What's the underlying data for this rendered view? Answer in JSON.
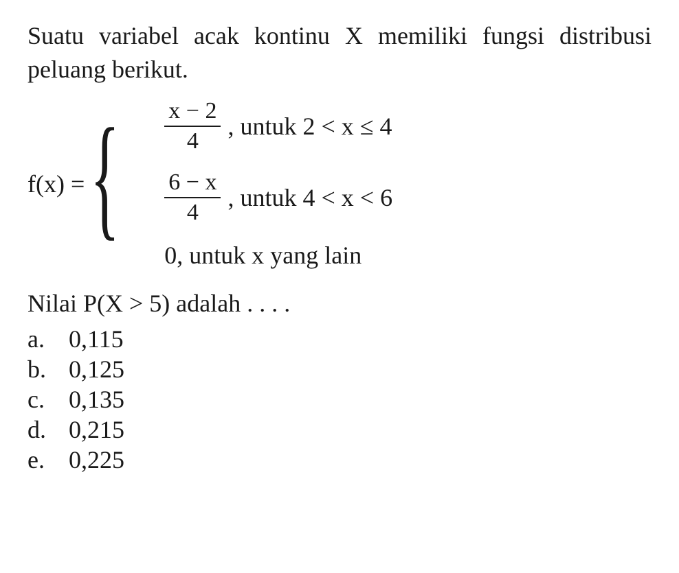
{
  "font_family": "Times New Roman",
  "text_color": "#1a1a1a",
  "background_color": "#ffffff",
  "question": {
    "intro": "Suatu variabel acak kontinu X memiliki fungsi distribusi peluang berikut."
  },
  "formula": {
    "lhs": "f(x) = ",
    "cases": [
      {
        "numerator": "x − 2",
        "denominator": "4",
        "separator": ", ",
        "condition": "untuk 2 < x ≤ 4"
      },
      {
        "numerator": "6 − x",
        "denominator": "4",
        "separator": ", ",
        "condition": "untuk 4 < x < 6"
      },
      {
        "plain": "0, untuk x yang lain"
      }
    ]
  },
  "prompt": "Nilai P(X > 5) adalah . . . .",
  "options": [
    {
      "letter": "a.",
      "value": "0,115"
    },
    {
      "letter": "b.",
      "value": "0,125"
    },
    {
      "letter": "c.",
      "value": "0,135"
    },
    {
      "letter": "d.",
      "value": "0,215"
    },
    {
      "letter": "e.",
      "value": "0,225"
    }
  ]
}
